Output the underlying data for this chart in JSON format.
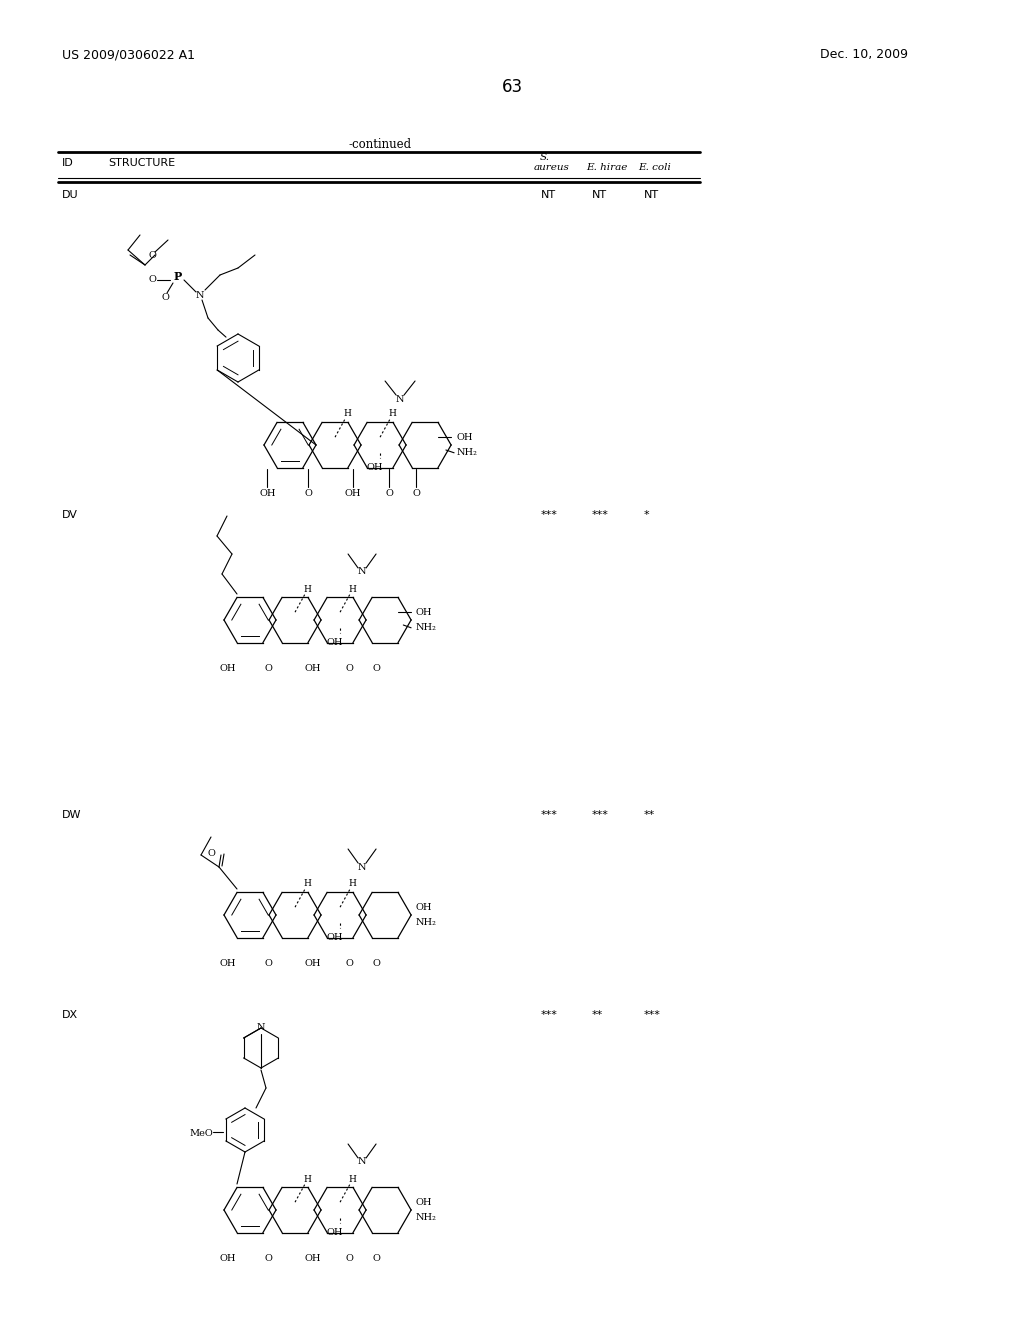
{
  "page_number": "63",
  "patent_number": "US 2009/0306022 A1",
  "patent_date": "Dec. 10, 2009",
  "continued_text": "-continued",
  "table_headers": {
    "id": "ID",
    "structure": "STRUCTURE",
    "s_aureus_line1": "S.",
    "s_aureus_line2": "aureus",
    "e_hirae": "E. hirae",
    "e_coli": "E. coli"
  },
  "rows": [
    {
      "id": "DU",
      "s_aureus": "NT",
      "e_hirae": "NT",
      "e_coli": "NT"
    },
    {
      "id": "DV",
      "s_aureus": "***",
      "e_hirae": "***",
      "e_coli": "*"
    },
    {
      "id": "DW",
      "s_aureus": "***",
      "e_hirae": "***",
      "e_coli": "**"
    },
    {
      "id": "DX",
      "s_aureus": "***",
      "e_hirae": "**",
      "e_coli": "***"
    }
  ],
  "bg_color": "#ffffff",
  "text_color": "#000000",
  "line_color": "#000000"
}
